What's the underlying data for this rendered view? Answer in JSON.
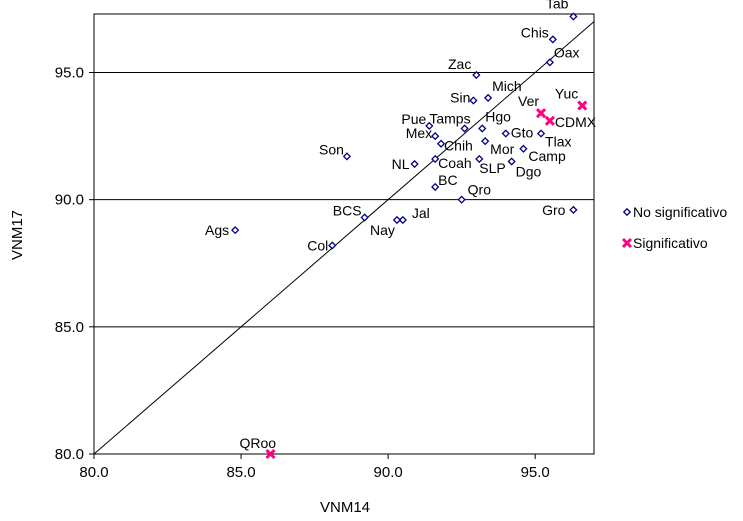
{
  "chart_data": {
    "type": "scatter",
    "title": "",
    "xlabel": "VNM14",
    "ylabel": "VNM17",
    "xlim": [
      80,
      97
    ],
    "ylim": [
      80,
      97.3
    ],
    "xticks": [
      "80.0",
      "85.0",
      "90.0",
      "95.0"
    ],
    "yticks": [
      "80.0",
      "85.0",
      "90.0",
      "95.0"
    ],
    "gridlines_y": [
      85,
      90,
      95
    ],
    "reference_line": "y = x",
    "legend_position": "right",
    "series": [
      {
        "name": "No significativo",
        "marker": "diamond",
        "color": "#000080",
        "points": [
          {
            "label": "Tab",
            "x": 96.3,
            "y": 97.2
          },
          {
            "label": "Chis",
            "x": 95.6,
            "y": 96.3
          },
          {
            "label": "Oax",
            "x": 95.5,
            "y": 95.4
          },
          {
            "label": "Zac",
            "x": 93.0,
            "y": 94.9
          },
          {
            "label": "Mich",
            "x": 93.4,
            "y": 94.0
          },
          {
            "label": "Sin",
            "x": 92.9,
            "y": 93.9
          },
          {
            "label": "Hgo",
            "x": 93.2,
            "y": 92.8
          },
          {
            "label": "Tamps",
            "x": 92.6,
            "y": 92.8
          },
          {
            "label": "Pue",
            "x": 91.4,
            "y": 92.9
          },
          {
            "label": "Gto",
            "x": 94.0,
            "y": 92.6
          },
          {
            "label": "Tlax",
            "x": 95.2,
            "y": 92.6
          },
          {
            "label": "Mex",
            "x": 91.6,
            "y": 92.5
          },
          {
            "label": "Chih",
            "x": 91.8,
            "y": 92.2
          },
          {
            "label": "Mor",
            "x": 93.3,
            "y": 92.3
          },
          {
            "label": "Camp",
            "x": 94.6,
            "y": 92.0
          },
          {
            "label": "Son",
            "x": 88.6,
            "y": 91.7
          },
          {
            "label": "Coah",
            "x": 91.6,
            "y": 91.6
          },
          {
            "label": "SLP",
            "x": 93.1,
            "y": 91.6
          },
          {
            "label": "NL",
            "x": 90.9,
            "y": 91.4
          },
          {
            "label": "Dgo",
            "x": 94.2,
            "y": 91.5
          },
          {
            "label": "BC",
            "x": 91.6,
            "y": 90.5
          },
          {
            "label": "Qro",
            "x": 92.5,
            "y": 90.0
          },
          {
            "label": "BCS",
            "x": 89.2,
            "y": 89.3
          },
          {
            "label": "Jal",
            "x": 90.5,
            "y": 89.2
          },
          {
            "label": "Nay",
            "x": 90.3,
            "y": 89.2
          },
          {
            "label": "Gro",
            "x": 96.3,
            "y": 89.6
          },
          {
            "label": "Ags",
            "x": 84.8,
            "y": 88.8
          },
          {
            "label": "Col",
            "x": 88.1,
            "y": 88.2
          }
        ]
      },
      {
        "name": "Significativo",
        "marker": "x",
        "color": "#FF0080",
        "points": [
          {
            "label": "Ver",
            "x": 95.2,
            "y": 93.4
          },
          {
            "label": "Yuc",
            "x": 96.6,
            "y": 93.7
          },
          {
            "label": "CDMX",
            "x": 95.5,
            "y": 93.1
          },
          {
            "label": "QRoo",
            "x": 86.0,
            "y": 80.0
          }
        ]
      }
    ]
  }
}
